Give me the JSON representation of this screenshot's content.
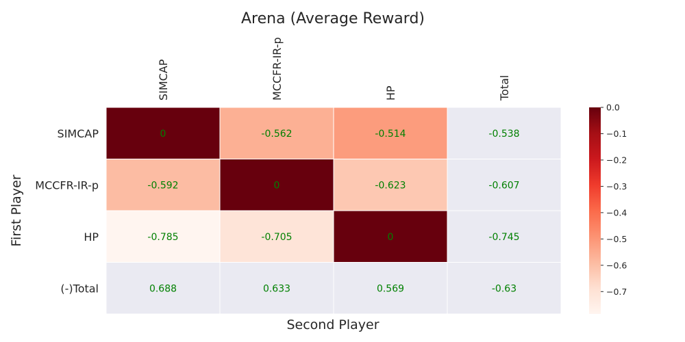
{
  "chart_data": {
    "type": "heatmap",
    "title": "Arena (Average Reward)",
    "xlabel": "Second Player",
    "ylabel": "First Player",
    "columns": [
      "SIMCAP",
      "MCCFR-IR-p",
      "HP",
      "Total"
    ],
    "rows": [
      "SIMCAP",
      "MCCFR-IR-p",
      "HP",
      "(-)Total"
    ],
    "cells": [
      [
        "0",
        "-0.562",
        "-0.514",
        "-0.538"
      ],
      [
        "-0.592",
        "0",
        "-0.623",
        "-0.607"
      ],
      [
        "-0.785",
        "-0.705",
        "0",
        "-0.745"
      ],
      [
        "0.688",
        "0.633",
        "0.569",
        "-0.63"
      ]
    ],
    "cell_values": [
      [
        0,
        -0.562,
        -0.514,
        null
      ],
      [
        -0.592,
        0,
        -0.623,
        null
      ],
      [
        -0.785,
        -0.705,
        0,
        null
      ],
      [
        null,
        null,
        null,
        null
      ]
    ],
    "colormap": "Reds_r",
    "vmin": -0.785,
    "vmax": 0,
    "colorbar_ticks": [
      "0.0",
      "−0.1",
      "−0.2",
      "−0.3",
      "−0.4",
      "−0.5",
      "−0.6",
      "−0.7"
    ],
    "colorbar_tick_values": [
      0,
      -0.1,
      -0.2,
      -0.3,
      -0.4,
      -0.5,
      -0.6,
      -0.7
    ],
    "annotation_color": "#008000",
    "empty_cell_color": "#eaeaf2",
    "grid": false,
    "colorbar_placement": "right"
  }
}
